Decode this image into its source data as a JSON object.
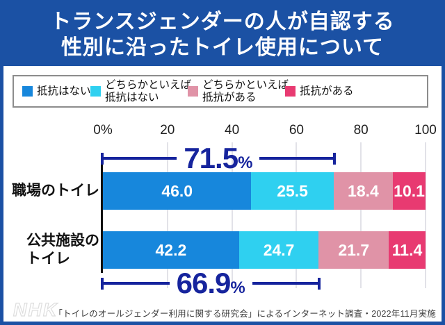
{
  "header": {
    "title_lines": [
      "トランスジェンダーの人が自認する",
      "性別に沿ったトイレ使用について"
    ]
  },
  "legend": {
    "items": [
      {
        "label": "抵抗はない",
        "color": "#1787dc"
      },
      {
        "label": "どちらかといえば\n抵抗はない",
        "color": "#2fd0f0"
      },
      {
        "label": "どちらかといえば\n抵抗がある",
        "color": "#e093a7"
      },
      {
        "label": "抵抗がある",
        "color": "#e83a71"
      }
    ]
  },
  "chart_data": {
    "type": "bar",
    "stacked": true,
    "orientation": "horizontal",
    "unit": "%",
    "xlim": [
      0,
      100
    ],
    "x_ticks": [
      "0%",
      "20",
      "40",
      "60",
      "80",
      "100"
    ],
    "grid": true,
    "categories": [
      "職場のトイレ",
      "公共施設の\nトイレ"
    ],
    "series": [
      {
        "name": "抵抗はない",
        "color": "#1787dc",
        "values": [
          46.0,
          42.2
        ]
      },
      {
        "name": "どちらかといえば抵抗はない",
        "color": "#2fd0f0",
        "values": [
          25.5,
          24.7
        ]
      },
      {
        "name": "どちらかといえば抵抗がある",
        "color": "#e093a7",
        "values": [
          18.4,
          21.7
        ]
      },
      {
        "name": "抵抗がある",
        "color": "#e83a71",
        "values": [
          10.1,
          11.4
        ]
      }
    ],
    "annotations": [
      {
        "row": 0,
        "label": "71.5",
        "unit": "%",
        "span_pct": 71.5,
        "position": "above"
      },
      {
        "row": 1,
        "label": "66.9",
        "unit": "%",
        "span_pct": 66.9,
        "position": "below"
      }
    ]
  },
  "footer": {
    "logo": "NHK",
    "source": "「トイレのオールジェンダー利用に関する研究会」によるインターネット調査・2022年11月実施"
  },
  "colors": {
    "frame": "#1b51a4",
    "annotation": "#16249d",
    "gridline": "#e2e2e8",
    "axis": "#111111"
  }
}
